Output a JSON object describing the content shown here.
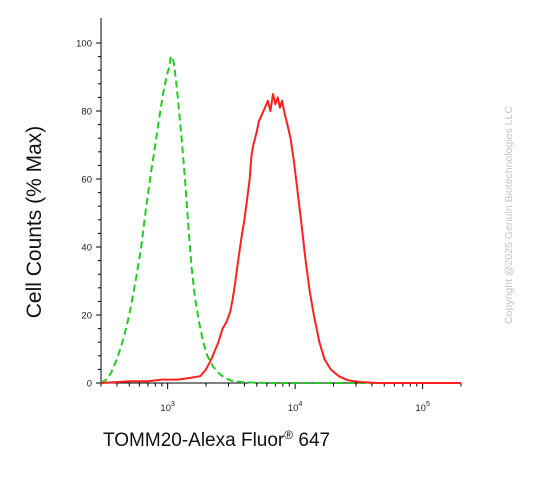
{
  "chart_data": {
    "type": "line",
    "xlabel": "TOMM20-Alexa Fluor",
    "xlabel_sup": "®",
    "xlabel_suffix": " 647",
    "ylabel": "Cell Counts (% Max)",
    "x_scale": "log",
    "xlim": [
      300,
      200000
    ],
    "ylim": [
      0,
      100
    ],
    "y_ticks": [
      0,
      20,
      40,
      60,
      80,
      100
    ],
    "x_ticks": [
      {
        "base": "10",
        "exp": "3",
        "value": 1000
      },
      {
        "base": "10",
        "exp": "4",
        "value": 10000
      },
      {
        "base": "10",
        "exp": "5",
        "value": 100000
      }
    ],
    "grid": false,
    "legend": "none",
    "series": [
      {
        "style": "dashed",
        "color": "#22cc22",
        "points": [
          [
            300,
            0
          ],
          [
            330,
            1
          ],
          [
            360,
            3
          ],
          [
            400,
            7
          ],
          [
            450,
            13
          ],
          [
            500,
            20
          ],
          [
            560,
            30
          ],
          [
            620,
            40
          ],
          [
            680,
            52
          ],
          [
            740,
            62
          ],
          [
            800,
            70
          ],
          [
            860,
            78
          ],
          [
            920,
            85
          ],
          [
            980,
            90
          ],
          [
            1030,
            93
          ],
          [
            1060,
            96
          ],
          [
            1090,
            96
          ],
          [
            1120,
            94
          ],
          [
            1170,
            88
          ],
          [
            1230,
            80
          ],
          [
            1300,
            70
          ],
          [
            1380,
            58
          ],
          [
            1460,
            45
          ],
          [
            1540,
            34
          ],
          [
            1640,
            25
          ],
          [
            1760,
            18
          ],
          [
            1900,
            12
          ],
          [
            2050,
            8
          ],
          [
            2250,
            5
          ],
          [
            2500,
            3
          ],
          [
            2800,
            1.5
          ],
          [
            3200,
            0.6
          ],
          [
            4000,
            0.2
          ],
          [
            6000,
            0
          ],
          [
            200000,
            0
          ]
        ]
      },
      {
        "style": "solid",
        "color": "#ff2020",
        "points": [
          [
            300,
            0
          ],
          [
            500,
            0.5
          ],
          [
            700,
            0.5
          ],
          [
            900,
            1
          ],
          [
            1200,
            1
          ],
          [
            1500,
            1.5
          ],
          [
            1800,
            2
          ],
          [
            2000,
            4
          ],
          [
            2200,
            7
          ],
          [
            2500,
            12
          ],
          [
            2700,
            16
          ],
          [
            2900,
            18
          ],
          [
            3100,
            21
          ],
          [
            3250,
            25
          ],
          [
            3400,
            30
          ],
          [
            3600,
            37
          ],
          [
            3800,
            43
          ],
          [
            4000,
            48
          ],
          [
            4200,
            54
          ],
          [
            4400,
            60
          ],
          [
            4550,
            67
          ],
          [
            4700,
            70
          ],
          [
            4850,
            72
          ],
          [
            5000,
            74
          ],
          [
            5200,
            77
          ],
          [
            5500,
            79
          ],
          [
            5800,
            81
          ],
          [
            6100,
            83
          ],
          [
            6400,
            80
          ],
          [
            6700,
            85
          ],
          [
            7000,
            82
          ],
          [
            7300,
            84
          ],
          [
            7600,
            81
          ],
          [
            7900,
            83
          ],
          [
            8300,
            79
          ],
          [
            8700,
            76
          ],
          [
            9200,
            72
          ],
          [
            9800,
            65
          ],
          [
            10400,
            57
          ],
          [
            11200,
            47
          ],
          [
            12000,
            37
          ],
          [
            13000,
            27
          ],
          [
            14000,
            20
          ],
          [
            15500,
            12
          ],
          [
            17000,
            7
          ],
          [
            19000,
            4
          ],
          [
            22000,
            2
          ],
          [
            26000,
            0.8
          ],
          [
            32000,
            0.3
          ],
          [
            45000,
            0
          ],
          [
            200000,
            0
          ]
        ]
      }
    ]
  },
  "watermark": "Copyright @2025 Genuin Biotechnologies LLC"
}
